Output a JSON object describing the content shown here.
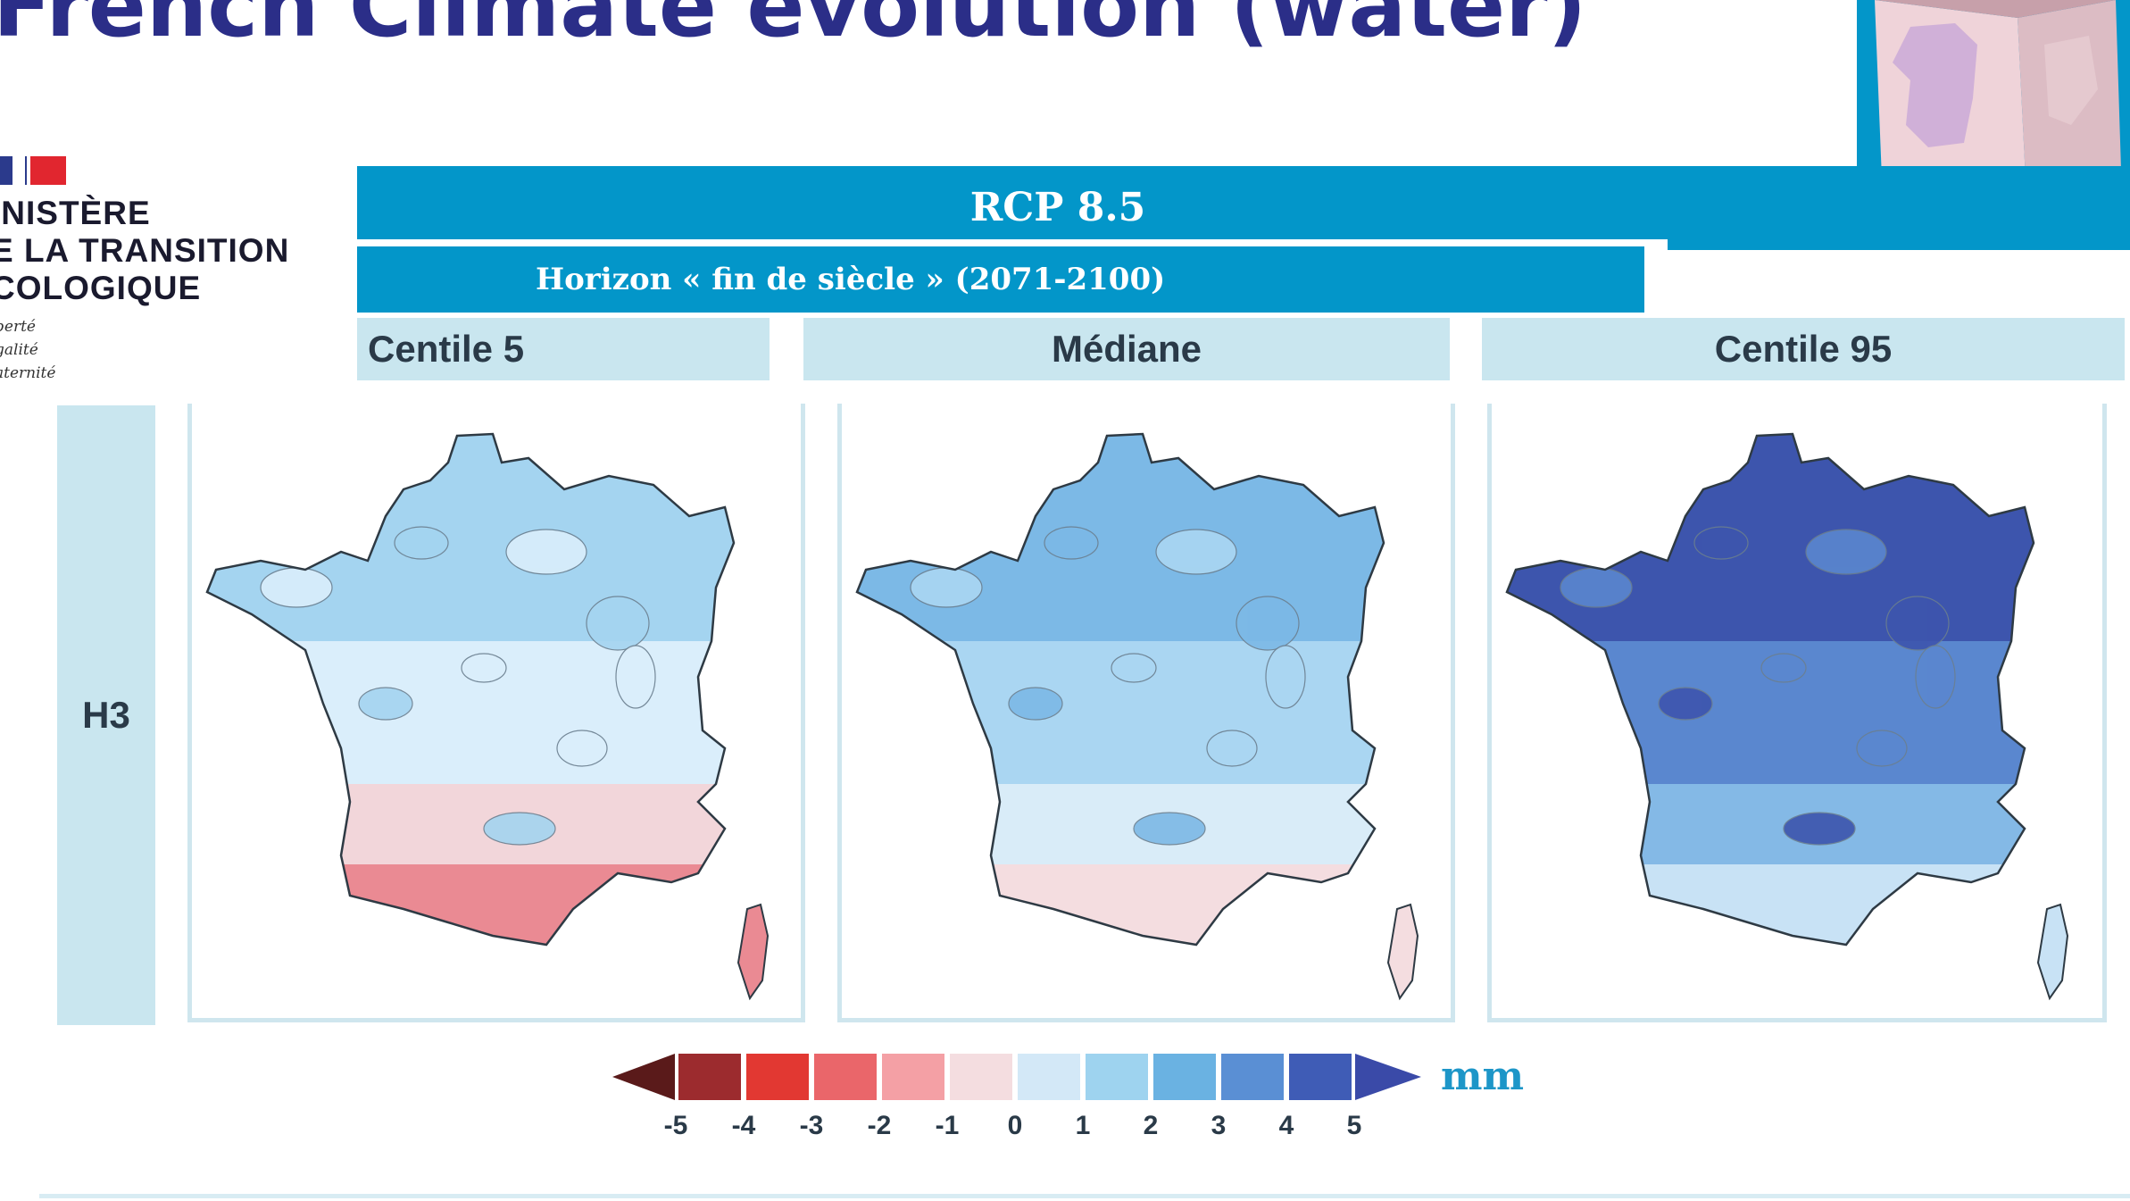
{
  "title": "French Climate evolution (water)",
  "logo": {
    "line1": "INISTÈRE",
    "line2": "E LA TRANSITION",
    "line3": "COLOGIQUE",
    "motto1": "berté",
    "motto2": "galité",
    "motto3": "aternité"
  },
  "scenario": "RCP 8.5",
  "horizon": "Horizon « fin de siècle » (2071-2100)",
  "columns": [
    "Centile 5",
    "Médiane",
    "Centile 95"
  ],
  "row_label": "H3",
  "legend": {
    "unit": "mm",
    "ticks": [
      "-5",
      "-4",
      "-3",
      "-2",
      "-1",
      "0",
      "1",
      "2",
      "3",
      "4",
      "5"
    ],
    "colors": [
      "#5a1a1a",
      "#9c2b2e",
      "#e23832",
      "#ea666a",
      "#f4a0a5",
      "#f4dde0",
      "#d3e8f7",
      "#9ed3ef",
      "#6ab2e2",
      "#5a8fd4",
      "#3f5cb6",
      "#3a4aa8"
    ]
  },
  "map_styles": [
    {
      "name": "Centile 5",
      "north": "#a4d4f0",
      "center": "#daeefb",
      "south": "#f2d6da",
      "far_south": "#ea8a93"
    },
    {
      "name": "Médiane",
      "north": "#7cb9e6",
      "center": "#aad6f2",
      "south": "#d9ecf8",
      "far_south": "#f4dde0"
    },
    {
      "name": "Centile 95",
      "north": "#3d55ad",
      "center": "#5a87cf",
      "south": "#84b9e6",
      "far_south": "#c8e2f5"
    }
  ]
}
